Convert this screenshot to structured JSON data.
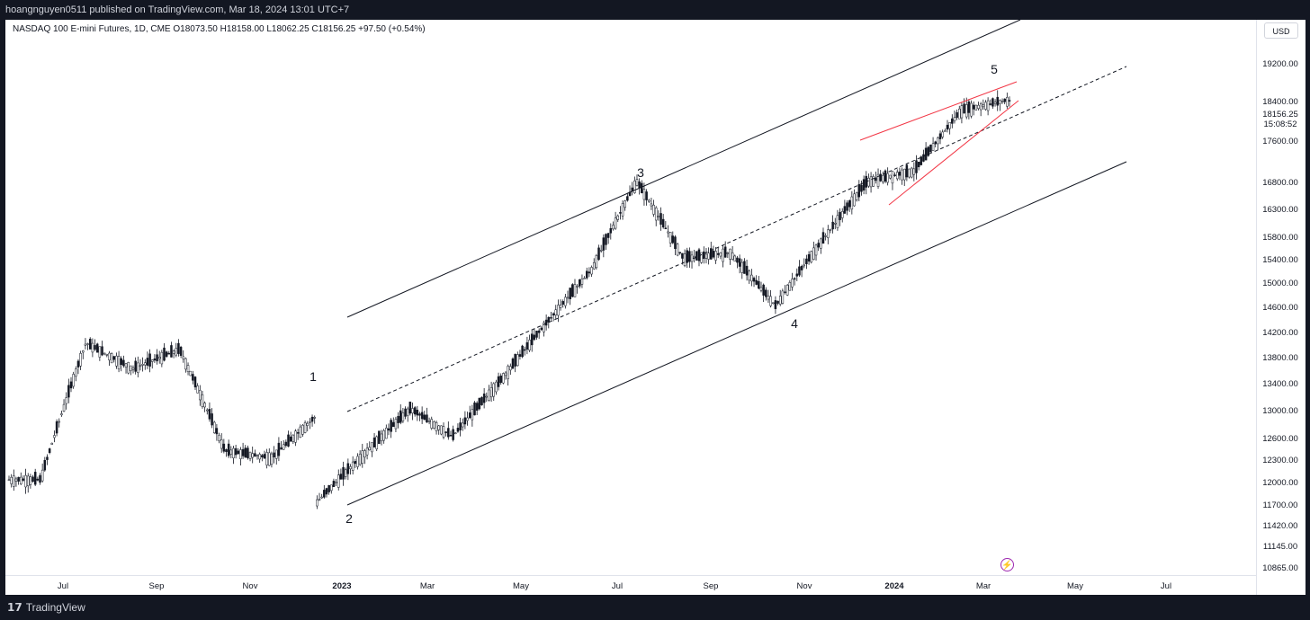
{
  "header": {
    "published_text": "hoangnguyen0511 published on TradingView.com, Mar 18, 2024 13:01 UTC+7"
  },
  "symbol": {
    "info": "NASDAQ 100 E-mini Futures, 1D, CME  O18073.50  H18158.00  L18062.25  C18156.25  +97.50 (+0.54%)"
  },
  "price_scale": {
    "currency": "USD",
    "labels": [
      "19200.00",
      "18400.00",
      "17600.00",
      "16800.00",
      "16300.00",
      "15800.00",
      "15400.00",
      "15000.00",
      "14600.00",
      "14200.00",
      "13800.00",
      "13400.00",
      "13000.00",
      "12600.00",
      "12300.00",
      "12000.00",
      "11700.00",
      "11420.00",
      "11145.00",
      "10865.00"
    ],
    "last_price": "18156.25",
    "countdown": "15:08:52"
  },
  "time_scale": {
    "labels": [
      {
        "text": "Jul",
        "bold": false
      },
      {
        "text": "Sep",
        "bold": false
      },
      {
        "text": "Nov",
        "bold": false
      },
      {
        "text": "2023",
        "bold": true
      },
      {
        "text": "Mar",
        "bold": false
      },
      {
        "text": "May",
        "bold": false
      },
      {
        "text": "Jul",
        "bold": false
      },
      {
        "text": "Sep",
        "bold": false
      },
      {
        "text": "Nov",
        "bold": false
      },
      {
        "text": "2024",
        "bold": true
      },
      {
        "text": "Mar",
        "bold": false
      },
      {
        "text": "May",
        "bold": false
      },
      {
        "text": "Jul",
        "bold": false
      }
    ]
  },
  "waves": {
    "w1": "1",
    "w2": "2",
    "w3": "3",
    "w4": "4",
    "w5": "5"
  },
  "chart_data": {
    "type": "candlestick",
    "ylim": [
      10865,
      19200
    ],
    "key_points": [
      {
        "x": "2022-06",
        "y": 12000
      },
      {
        "x": "2022-07",
        "y": 14000
      },
      {
        "x": "2022-08",
        "y": 13600
      },
      {
        "x": "2022-09",
        "y": 13900
      },
      {
        "x": "2022-10",
        "y": 12400
      },
      {
        "x": "2022-11",
        "y": 12300
      },
      {
        "x": "2022-12",
        "y": 12900
      },
      {
        "x": "2022-12",
        "y": 11700
      },
      {
        "x": "2023-02",
        "y": 13000
      },
      {
        "x": "2023-03",
        "y": 12600
      },
      {
        "x": "2023-04",
        "y": 13400
      },
      {
        "x": "2023-06",
        "y": 15200
      },
      {
        "x": "2023-07",
        "y": 16800
      },
      {
        "x": "2023-08",
        "y": 15400
      },
      {
        "x": "2023-09",
        "y": 15500
      },
      {
        "x": "2023-10",
        "y": 14600
      },
      {
        "x": "2023-12",
        "y": 16800
      },
      {
        "x": "2024-01",
        "y": 17000
      },
      {
        "x": "2024-02",
        "y": 18200
      },
      {
        "x": "2024-03",
        "y": 18400
      },
      {
        "x": "2024-03",
        "y": 18156.25
      }
    ]
  },
  "colors": {
    "candle": "#131722",
    "wedge": "#f23645",
    "channel": "#131722",
    "background": "#ffffff",
    "frame": "#131722"
  },
  "footer": {
    "brand": "TradingView",
    "logo_icon": "tradingview-logo-icon",
    "flash_icon": "lightning-icon"
  }
}
